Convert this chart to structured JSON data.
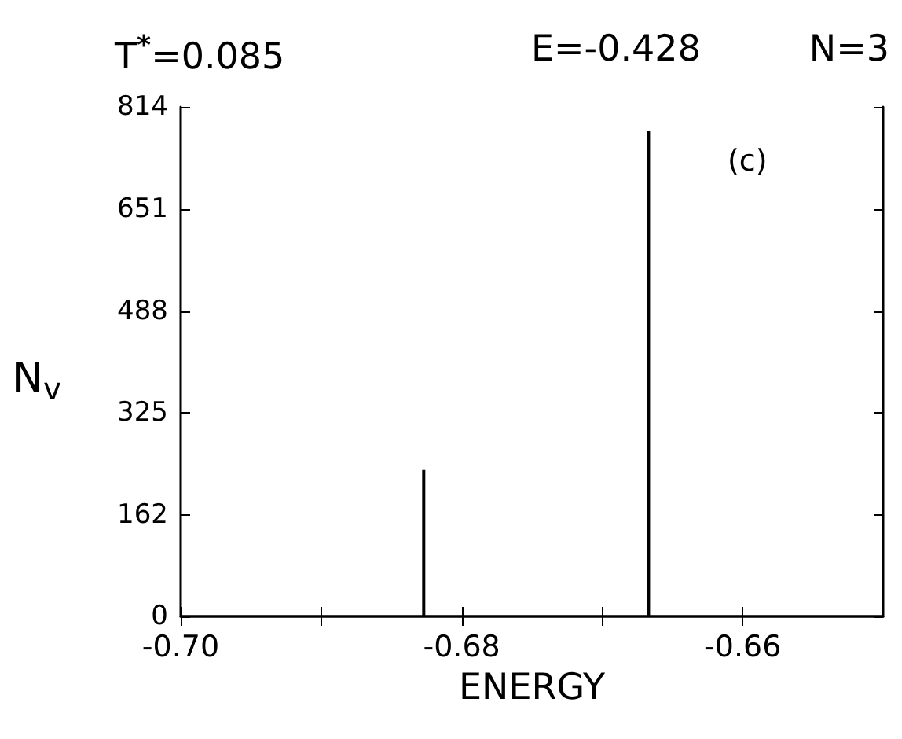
{
  "chart_data": {
    "type": "bar",
    "title": "T$^{*}$=0.085",
    "annotations": [
      "E=-0.428",
      "N=3",
      "(c)"
    ],
    "xlabel": "ENERGY",
    "ylabel": "N$_{v}$",
    "x": [
      -0.6827,
      -0.6667
    ],
    "series": [
      {
        "color": "#000000",
        "values": [
          234,
          775
        ]
      }
    ],
    "xlim": [
      -0.7,
      -0.65
    ],
    "xticks": [
      {
        "value": -0.7,
        "label": "-0.70"
      },
      {
        "value": -0.69,
        "label": null
      },
      -0.68,
      {
        "value": -0.67,
        "label": null
      },
      -0.66
    ],
    "ylim": [
      0,
      814
    ],
    "yticks": [
      0,
      162,
      325,
      488,
      651,
      814
    ],
    "grid": false
  }
}
